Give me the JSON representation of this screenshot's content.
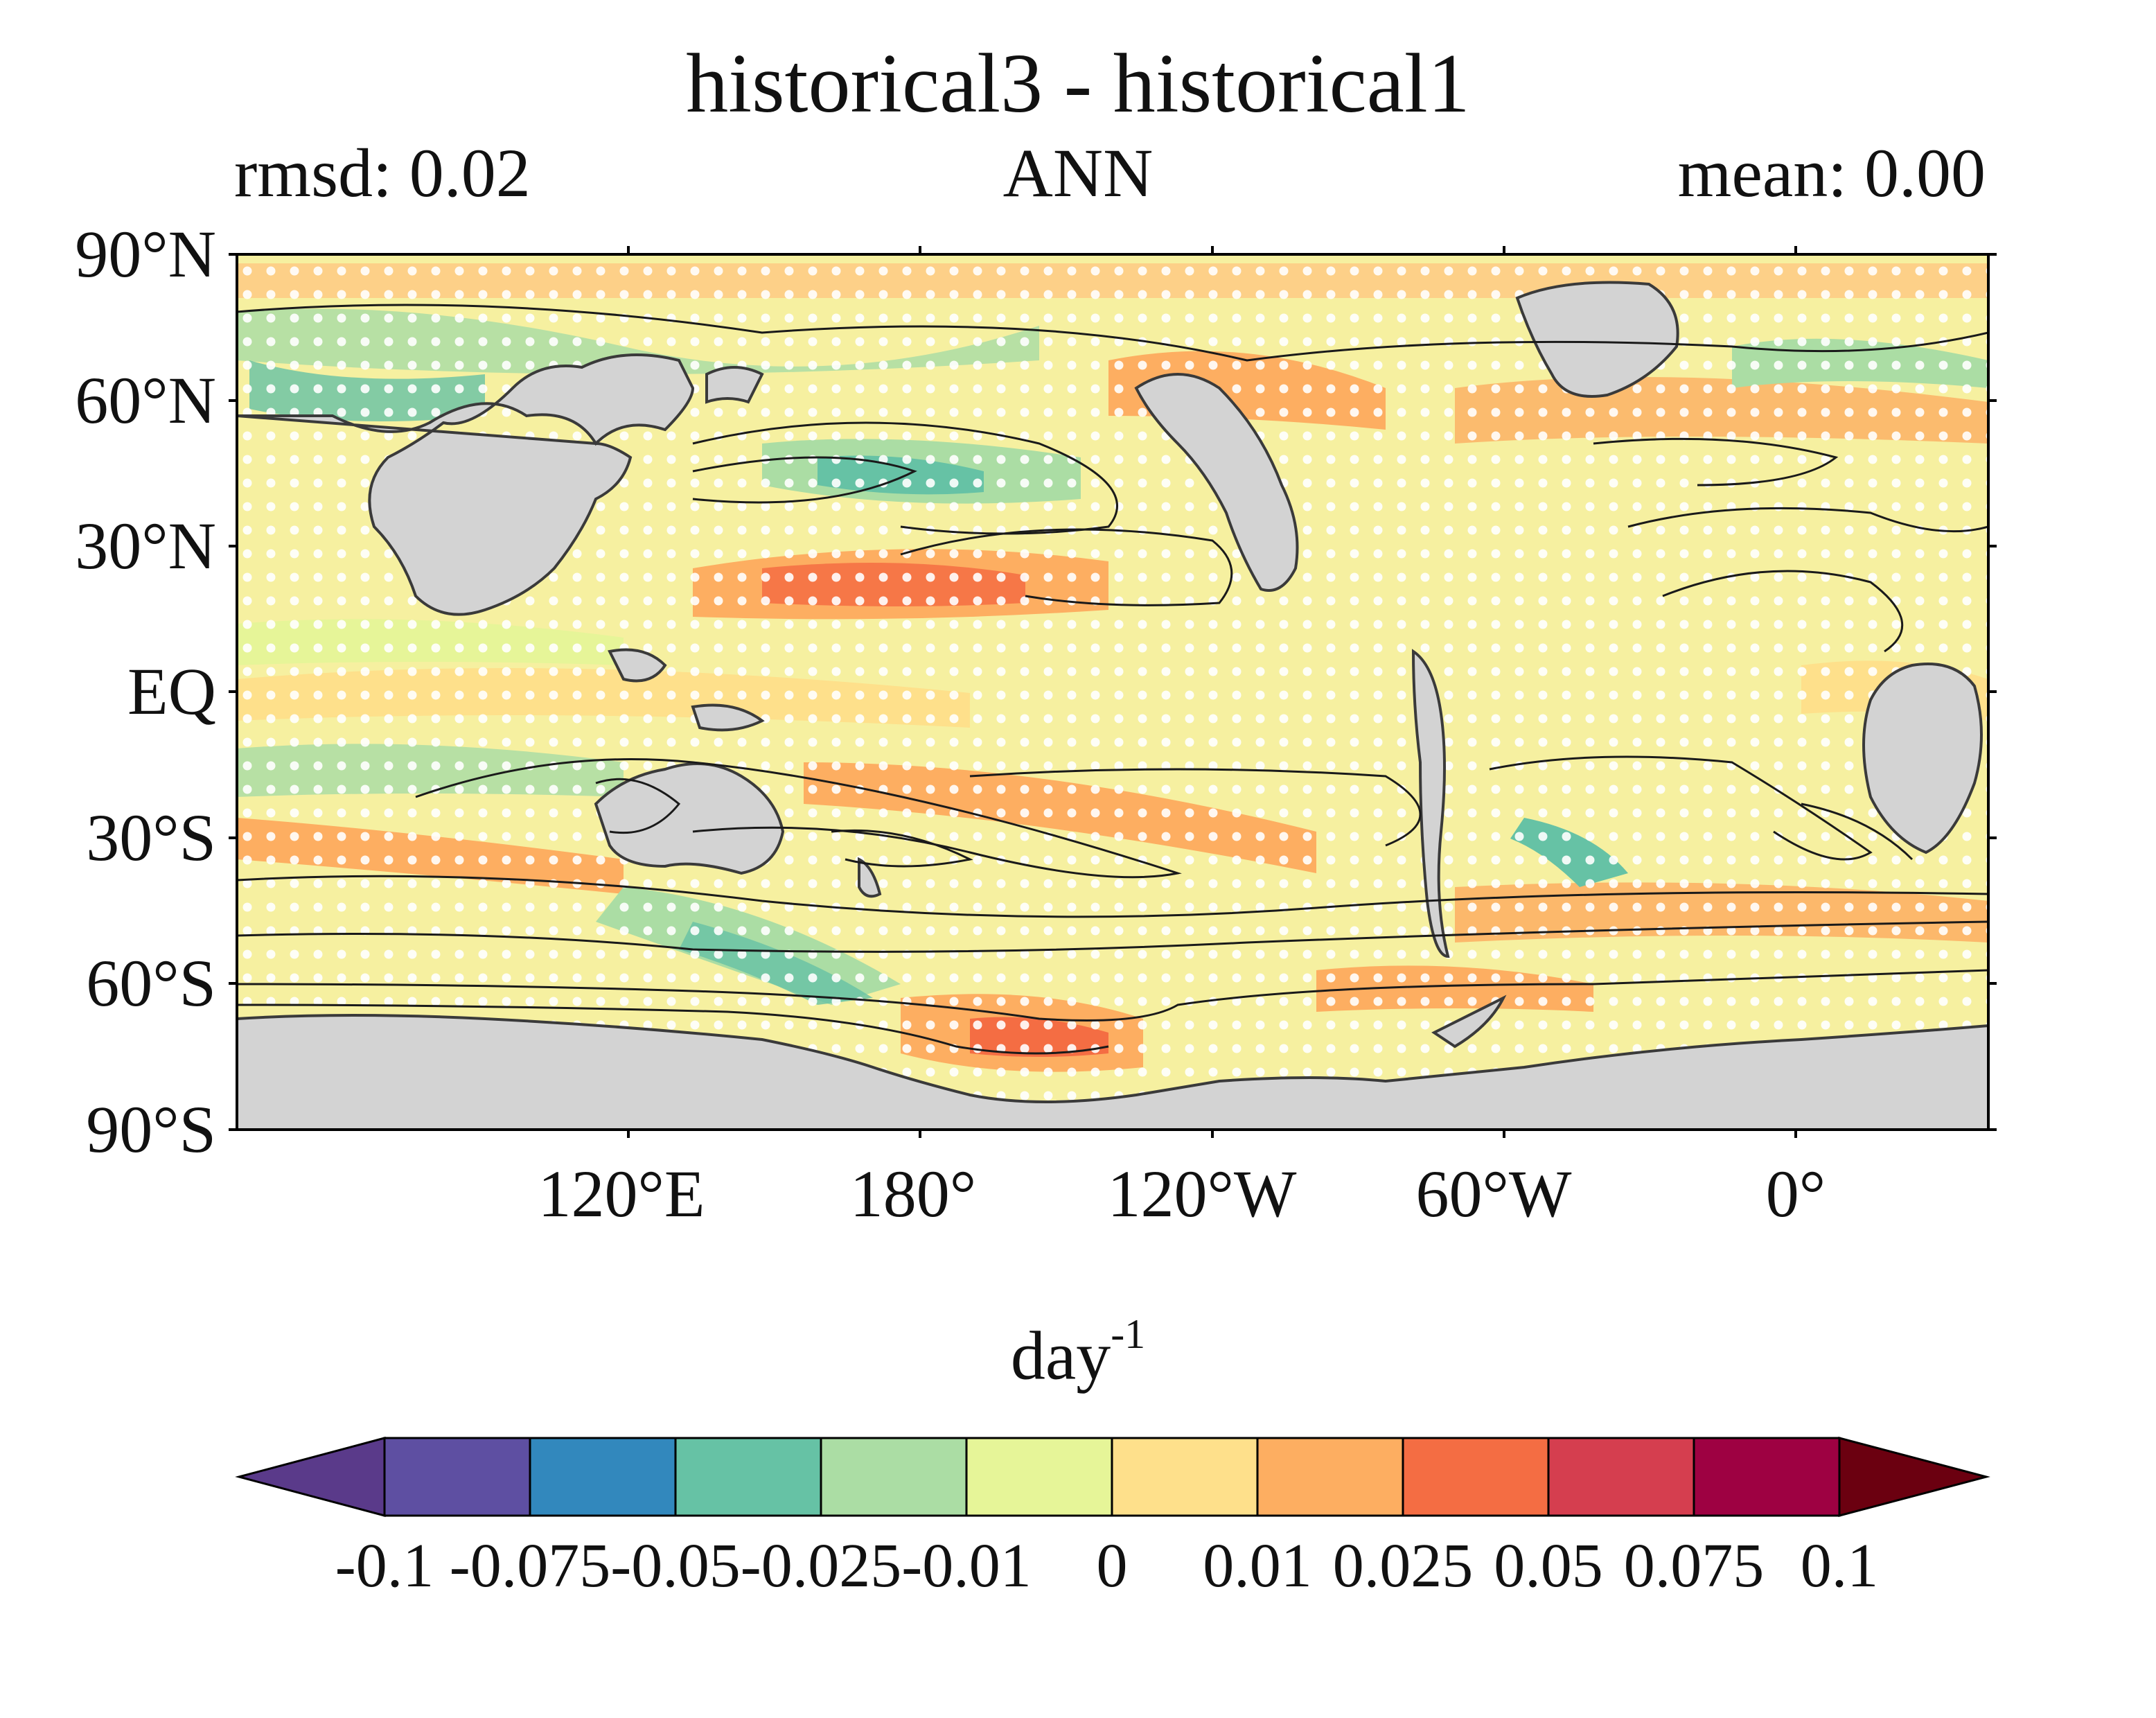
{
  "header": {
    "title": "historical3 - historical1",
    "left_stat": "rmsd: 0.02",
    "season": "ANN",
    "right_stat": "mean: 0.00"
  },
  "map": {
    "lat_labels": [
      "90°N",
      "60°N",
      "30°N",
      "EQ",
      "30°S",
      "60°S",
      "90°S"
    ],
    "lon_labels": [
      "120°E",
      "180°",
      "120°W",
      "60°W",
      "0°"
    ],
    "colors": {
      "ocean_base": "#f2f2a6",
      "land": "#d3d3d3",
      "contour": "#1a1a1a",
      "stipple": "#ffffff"
    }
  },
  "colorbar": {
    "units_base": "day",
    "units_exp": "-1",
    "ticks": [
      "-0.1",
      "-0.075",
      "-0.05",
      "-0.025",
      "-0.01",
      "0",
      "0.01",
      "0.025",
      "0.05",
      "0.075",
      "0.1"
    ],
    "colors": [
      "#5e4fa2",
      "#3288bd",
      "#66c2a5",
      "#abdda4",
      "#e6f598",
      "#fee08b",
      "#fdae61",
      "#f46d43",
      "#d53e4f",
      "#9e0142"
    ],
    "under_color": "#5a3a8a",
    "over_color": "#6b0010"
  }
}
